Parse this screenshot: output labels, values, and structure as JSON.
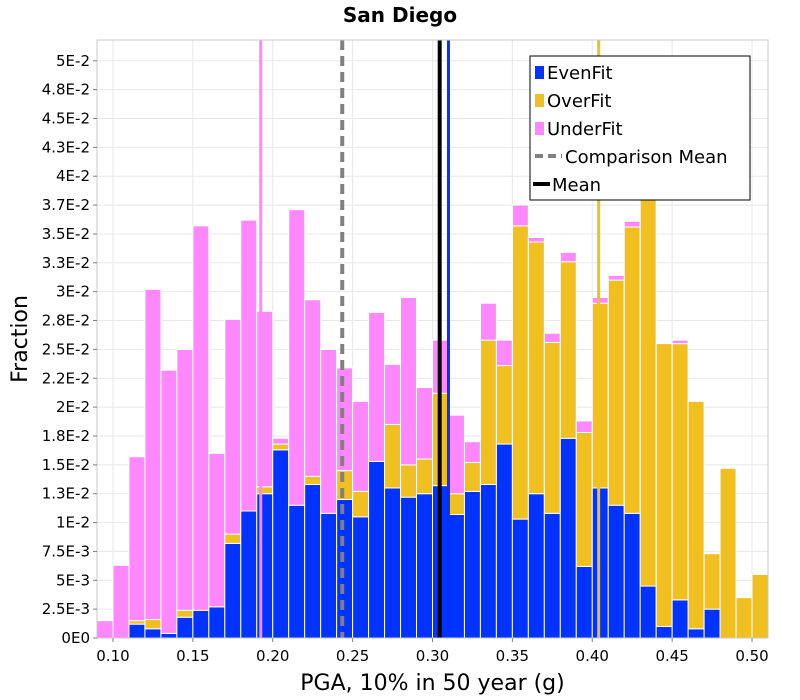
{
  "chart_data": {
    "type": "bar",
    "stacked": true,
    "title": "San Diego",
    "xlabel": "PGA, 10% in 50 year (g)",
    "ylabel": "Fraction",
    "xlim": [
      0.09,
      0.51
    ],
    "ylim": [
      0,
      0.0518
    ],
    "bin_width": 0.01,
    "x_ticks": [
      {
        "value": 0.1,
        "label": "0.10"
      },
      {
        "value": 0.15,
        "label": "0.15"
      },
      {
        "value": 0.2,
        "label": "0.20"
      },
      {
        "value": 0.25,
        "label": "0.25"
      },
      {
        "value": 0.3,
        "label": "0.30"
      },
      {
        "value": 0.35,
        "label": "0.35"
      },
      {
        "value": 0.4,
        "label": "0.40"
      },
      {
        "value": 0.45,
        "label": "0.45"
      },
      {
        "value": 0.5,
        "label": "0.50"
      }
    ],
    "y_ticks": [
      {
        "value": 0,
        "label": "0E0"
      },
      {
        "value": 0.0025,
        "label": "2.5E-3"
      },
      {
        "value": 0.005,
        "label": "5E-3"
      },
      {
        "value": 0.0075,
        "label": "7.5E-3"
      },
      {
        "value": 0.01,
        "label": "1E-2"
      },
      {
        "value": 0.0125,
        "label": "1.3E-2"
      },
      {
        "value": 0.015,
        "label": "1.5E-2"
      },
      {
        "value": 0.0175,
        "label": "1.8E-2"
      },
      {
        "value": 0.02,
        "label": "2E-2"
      },
      {
        "value": 0.0225,
        "label": "2.2E-2"
      },
      {
        "value": 0.025,
        "label": "2.5E-2"
      },
      {
        "value": 0.0275,
        "label": "2.8E-2"
      },
      {
        "value": 0.03,
        "label": "3E-2"
      },
      {
        "value": 0.0325,
        "label": "3.3E-2"
      },
      {
        "value": 0.035,
        "label": "3.5E-2"
      },
      {
        "value": 0.0375,
        "label": "3.7E-2"
      },
      {
        "value": 0.04,
        "label": "4E-2"
      },
      {
        "value": 0.0425,
        "label": "4.3E-2"
      },
      {
        "value": 0.045,
        "label": "4.5E-2"
      },
      {
        "value": 0.0475,
        "label": "4.8E-2"
      },
      {
        "value": 0.05,
        "label": "5E-2"
      }
    ],
    "bin_starts": [
      0.09,
      0.1,
      0.11,
      0.12,
      0.13,
      0.14,
      0.15,
      0.16,
      0.17,
      0.18,
      0.19,
      0.2,
      0.21,
      0.22,
      0.23,
      0.24,
      0.25,
      0.26,
      0.27,
      0.28,
      0.29,
      0.3,
      0.31,
      0.32,
      0.33,
      0.34,
      0.35,
      0.36,
      0.37,
      0.38,
      0.39,
      0.4,
      0.41,
      0.42,
      0.43,
      0.44,
      0.45,
      0.46,
      0.47,
      0.48,
      0.49,
      0.5
    ],
    "series": [
      {
        "name": "EvenFit",
        "color": "#0033ff",
        "values": [
          0,
          0,
          0.0012,
          0.0008,
          0.0004,
          0.0018,
          0.0024,
          0.0027,
          0.0082,
          0.011,
          0.0125,
          0.0163,
          0.0115,
          0.0133,
          0.0108,
          0.012,
          0.0105,
          0.0153,
          0.013,
          0.0122,
          0.0125,
          0.0132,
          0.0107,
          0.0127,
          0.0133,
          0.0168,
          0.0103,
          0.0125,
          0.0108,
          0.0173,
          0.0062,
          0.013,
          0.0115,
          0.0108,
          0.0045,
          0.001,
          0.0033,
          0.0008,
          0.0025,
          0,
          0,
          0
        ]
      },
      {
        "name": "OverFit",
        "color": "#f0c020",
        "values": [
          0,
          0,
          0.0003,
          0.0008,
          0,
          0.0006,
          0,
          0,
          0.0008,
          0,
          0.0006,
          0.0005,
          0,
          0.0007,
          0,
          0.0025,
          0.0022,
          0,
          0.0055,
          0.0028,
          0.003,
          0.008,
          0.0018,
          0.0025,
          0.0125,
          0.0068,
          0.0254,
          0.0218,
          0.0148,
          0.0153,
          0.0116,
          0.016,
          0.0195,
          0.0248,
          0.0342,
          0.0245,
          0.0222,
          0.0197,
          0.0048,
          0.0147,
          0.0035,
          0.0055
        ]
      },
      {
        "name": "UnderFit",
        "color": "#ff88ff",
        "values": [
          0.0015,
          0.0063,
          0.0142,
          0.0286,
          0.0228,
          0.0226,
          0.0333,
          0.0133,
          0.0186,
          0.0252,
          0.0152,
          0.0005,
          0.0256,
          0.0153,
          0.0142,
          0.0089,
          0.0078,
          0.0129,
          0.0052,
          0.0145,
          0.0062,
          0.0046,
          0.0068,
          0.0018,
          0.0032,
          0.0022,
          0.0018,
          0.0004,
          0.0008,
          0.0008,
          0.001,
          0.0005,
          0.0004,
          0.0005,
          0.0005,
          0,
          0.0003,
          0,
          0,
          0,
          0,
          0
        ]
      }
    ],
    "vertical_lines": [
      {
        "name": "Comparison Mean",
        "x": 0.2435,
        "color": "#808080",
        "style": "dashed"
      },
      {
        "name": "Mean",
        "x": 0.3045,
        "color": "#000000",
        "style": "solid"
      },
      {
        "name": "UnderFit Mean",
        "x": 0.1925,
        "color": "#ff88ff",
        "style": "solid"
      },
      {
        "name": "EvenFit Mean",
        "x": 0.31,
        "color": "#0033ff",
        "style": "solid"
      },
      {
        "name": "OverFit Mean",
        "x": 0.404,
        "color": "#f0c020",
        "style": "solid"
      }
    ],
    "legend": {
      "placement": "top-right",
      "entries": [
        {
          "label": "EvenFit",
          "kind": "box",
          "color": "#0033ff"
        },
        {
          "label": "OverFit",
          "kind": "box",
          "color": "#f0c020"
        },
        {
          "label": "UnderFit",
          "kind": "box",
          "color": "#ff88ff"
        },
        {
          "label": "Comparison Mean",
          "kind": "dashed",
          "color": "#808080"
        },
        {
          "label": "Mean",
          "kind": "line",
          "color": "#000000"
        }
      ]
    },
    "grid": true
  }
}
